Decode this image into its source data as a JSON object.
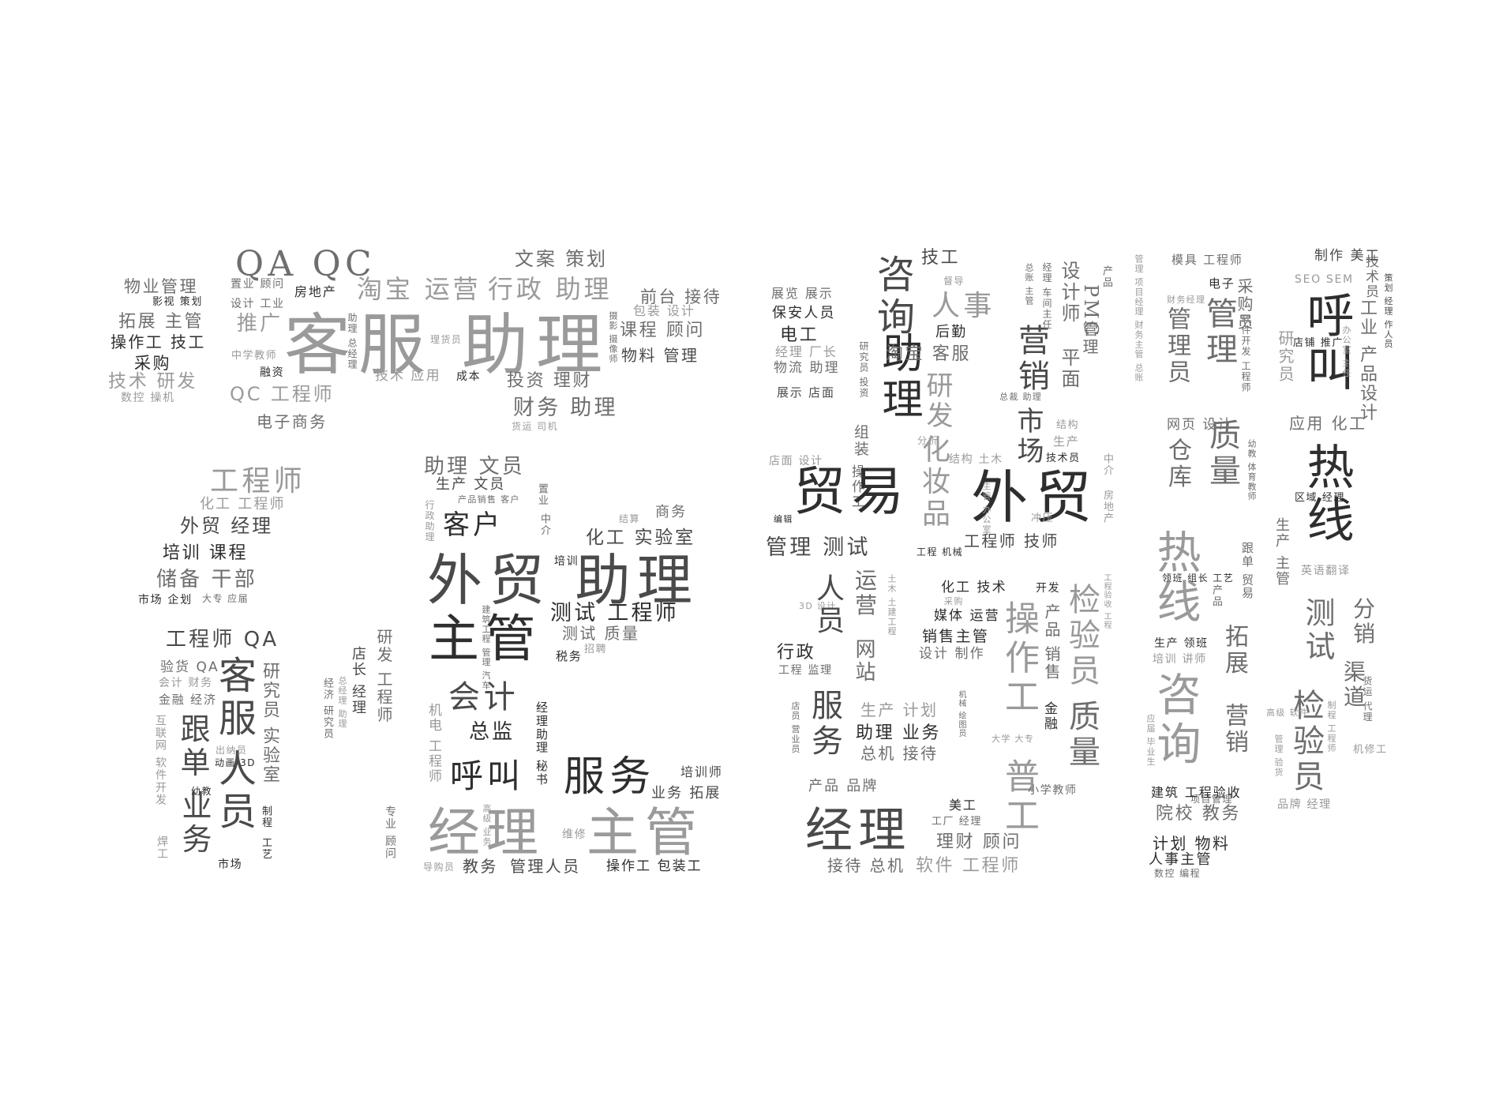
{
  "words": {
    "w001": "客服 助理",
    "w002": "QA QC",
    "w003": "淘宝 运营",
    "w004": "行政 助理",
    "w005": "文案 策划",
    "w006": "物业管理",
    "w007": "影视 策划",
    "w008": "拓展 主管",
    "w009": "操作工 技工",
    "w010": "采购",
    "w011": "技术 研发",
    "w012": "数控 操机",
    "w013": "置业 顾问",
    "w014": "设计 工业",
    "w015": "房地产",
    "w016": "推广",
    "w017": "中学教师",
    "w018": "融资",
    "w019": "QC 工程师",
    "w020": "电子商务",
    "w021": "理货员",
    "w022": "技术 应用",
    "w023": "成本",
    "w024": "助理 总经理",
    "w025": "前台 接待",
    "w026": "包装 设计",
    "w027": "课程 顾问",
    "w028": "物料 管理",
    "w029": "投资 理财",
    "w030": "财务 助理",
    "w031": "货运 司机",
    "w032": "摄影 摄像师",
    "w033": "工程师",
    "w034": "化工 工程师",
    "w035": "外贸 经理",
    "w036": "培训 课程",
    "w037": "储备 干部",
    "w038": "市场 企划",
    "w039": "大专 应届",
    "w040": "工程师 QA",
    "w041": "验货 QA",
    "w042": "会计 财务",
    "w043": "金融 经济",
    "w044": "客服",
    "w045": "研究员",
    "w046": "跟单",
    "w047": "实验室",
    "w048": "人员",
    "w049": "业务",
    "w050": "互联网 软件开发",
    "w051": "焊工",
    "w052": "出纳员",
    "w053": "动画 3D",
    "w054": "幼教",
    "w055": "制程",
    "w056": "工艺",
    "w057": "市场",
    "w058": "经济 研究员",
    "w059": "总经理 助理",
    "w060": "店长 经理",
    "w061": "研发 工程师",
    "w062": "专业 顾问",
    "w063": "助理 文员",
    "w064": "生产 文员",
    "w065": "产品销售 客户",
    "w066": "置业",
    "w067": "中介",
    "w068": "行政助理",
    "w069": "客户",
    "w070": "结算",
    "w071": "商务",
    "w072": "化工 实验室",
    "w073": "外贸 助理",
    "w074": "培训",
    "w075": "主管",
    "w076": "建筑工程 管理 汽车",
    "w077": "测试 工程师",
    "w078": "测试 质量",
    "w079": "税务",
    "w080": "招聘",
    "w081": "会计",
    "w082": "总监",
    "w083": "经理助理 秘书",
    "w084": "机电 工程师",
    "w085": "呼叫",
    "w086": "服务",
    "w087": "培训师",
    "w088": "业务 拓展",
    "w089": "经理",
    "w090": "主管",
    "w091": "高级 业务",
    "w092": "维修",
    "w093": "导购员",
    "w094": "教务",
    "w095": "管理人员",
    "w096": "操作工 包装工",
    "w097": "展览 展示",
    "w098": "保安人员",
    "w099": "电工",
    "w100": "经理 厂长",
    "w101": "物流 助理",
    "w102": "展示 店面",
    "w103": "研究员 投资",
    "w104": "店面 设计",
    "w105": "组装",
    "w106": "编辑",
    "w107": "操作工",
    "w108": "管理 测试",
    "w109": "贸易",
    "w110": "技工",
    "w111": "督导",
    "w112": "咨询",
    "w113": "助理",
    "w114": "人事",
    "w115": "淘宝 客服",
    "w116": "后勤",
    "w117": "化妆品",
    "w118": "研发",
    "w119": "分析",
    "w120": "结构 土木",
    "w121": "外贸",
    "w122": "工程师 技师",
    "w123": "工程 机械",
    "w124": "营销",
    "w125": "市场",
    "w126": "总裁 助理",
    "w127": "总账 主管",
    "w128": "经理 车间主任",
    "w129": "设计师",
    "w130": "平面",
    "w131": "PMC",
    "w132": "管理",
    "w133": "产品",
    "w134": "技术员",
    "w135": "结构",
    "w136": "生产",
    "w137": "主管 办公室",
    "w138": "冲压",
    "w139": "中介",
    "w140": "房地产",
    "w141": "工程验收 工程",
    "w142": "化工 技术",
    "w143": "开发",
    "w144": "采购",
    "w145": "媒体 运营",
    "w146": "销售主管",
    "w147": "设计 制作",
    "w148": "3D 设计",
    "w149": "土木 土建工程",
    "w150": "人员",
    "w151": "运营",
    "w152": "网站",
    "w153": "服务",
    "w154": "行政",
    "w155": "工程 监理",
    "w156": "操作工",
    "w157": "检验员",
    "w158": "产品 销售",
    "w159": "金融",
    "w160": "普工",
    "w161": "质量",
    "w162": "生产 计划",
    "w163": "助理 业务",
    "w164": "总机 接待",
    "w165": "机械 绘图员",
    "w166": "大学 大专",
    "w167": "店员 营业员",
    "w168": "产品 品牌",
    "w169": "经理",
    "w170": "美工",
    "w171": "工厂 经理",
    "w172": "理财 顾问",
    "w173": "小学教师",
    "w174": "接待 总机",
    "w175": "软件 工程师",
    "w176": "管理 项目经理 财务主管 总账",
    "w177": "模具 工程师",
    "w178": "电子",
    "w179": "财务经理",
    "w180": "采购员",
    "w181": "管理员",
    "w182": "管理",
    "w183": "软件开发 工程师",
    "w184": "网页 设计",
    "w185": "仓库",
    "w186": "质量",
    "w187": "幼教 体育教师",
    "w188": "热线",
    "w189": "跟单 贸易",
    "w190": "领班 组长 工艺",
    "w191": "产品",
    "w192": "拓展",
    "w193": "生产 领班",
    "w194": "培训 讲师",
    "w195": "营销",
    "w196": "咨询",
    "w197": "应届 毕业生",
    "w198": "项目管理",
    "w199": "建筑 工程验收",
    "w200": "院校 教务",
    "w201": "计划 物料",
    "w202": "人事主管",
    "w203": "数控 编程",
    "w204": "制作 美工",
    "w205": "技术员",
    "w206": "SEO SEM",
    "w207": "研究员",
    "w208": "店铺 推广",
    "w209": "呼叫",
    "w210": "工业 产品设计",
    "w211": "策划 经理 作人员",
    "w212": "应用 化工",
    "w213": "热线",
    "w214": "区域 经理",
    "w215": "生产 主管",
    "w216": "英语翻译",
    "w217": "测试",
    "w218": "分销",
    "w219": "渠道",
    "w220": "检验员",
    "w221": "高级 软件",
    "w222": "制程 工程师",
    "w223": "货运 代理",
    "w224": "机修工",
    "w225": "管理 验货",
    "w226": "品牌 经理",
    "w227": "办公室 主任"
  }
}
